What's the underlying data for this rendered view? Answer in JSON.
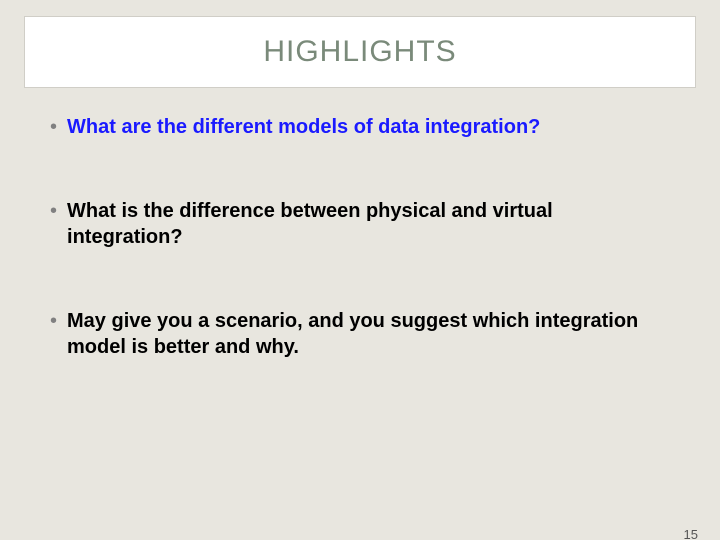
{
  "background_color": "#e8e6df",
  "title_box": {
    "text": "HIGHLIGHTS",
    "bg_color": "#ffffff",
    "text_color": "#7a8a7a",
    "border_color": "#d0cec7",
    "font_size": 30
  },
  "bullets": [
    {
      "text": "What are the different models of data integration?",
      "color": "#1a1aff"
    },
    {
      "text": "What is the difference between physical and virtual integration?",
      "color": "#000000"
    },
    {
      "text": "May give you a scenario, and you suggest which integration model is better and why.",
      "color": "#000000"
    }
  ],
  "bullet_marker_color": "#808080",
  "bullet_font_size": 20,
  "page_number": "15",
  "page_number_color": "#555555"
}
